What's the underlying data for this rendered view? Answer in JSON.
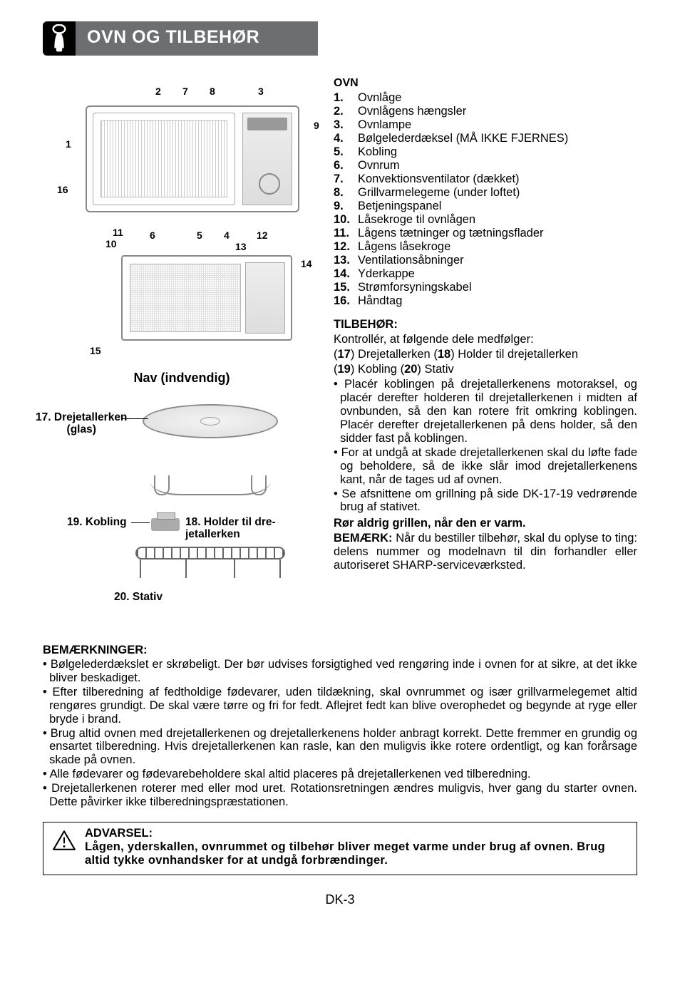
{
  "header": {
    "title": "OVN OG TILBEHØR"
  },
  "diagram1_numbers": {
    "n1": "1",
    "n2": "2",
    "n3": "3",
    "n4": "4",
    "n5": "5",
    "n6": "6",
    "n7": "7",
    "n8": "8",
    "n9": "9",
    "n10": "10",
    "n11": "11",
    "n12": "12",
    "n16": "16"
  },
  "diagram2_numbers": {
    "n13": "13",
    "n14": "14",
    "n15": "15"
  },
  "nav_title": "Nav (indvendig)",
  "accessories": {
    "drejetallerken": {
      "num": "17.",
      "label": "Drejetallerken",
      "sub": "(glas)"
    },
    "kobling": {
      "num": "19.",
      "label": "Kobling"
    },
    "holder": {
      "num": "18.",
      "label": "Holder til dre-",
      "sub": "jetallerken"
    },
    "stativ": {
      "num": "20.",
      "label": "Stativ"
    }
  },
  "ovn": {
    "heading": "OVN",
    "items": [
      {
        "n": "1.",
        "t": "Ovnlåge"
      },
      {
        "n": "2.",
        "t": "Ovnlågens hængsler"
      },
      {
        "n": "3.",
        "t": "Ovnlampe"
      },
      {
        "n": "4.",
        "t": "Bølgelederdæksel (MÅ IKKE FJERNES)"
      },
      {
        "n": "5.",
        "t": "Kobling"
      },
      {
        "n": "6.",
        "t": "Ovnrum"
      },
      {
        "n": "7.",
        "t": "Konvektionsventilator (dækket)"
      },
      {
        "n": "8.",
        "t": "Grillvarmelegeme (under loftet)"
      },
      {
        "n": "9.",
        "t": "Betjeningspanel"
      },
      {
        "n": "10.",
        "t": "Låsekroge til ovnlågen"
      },
      {
        "n": "11.",
        "t": "Lågens tætninger og tætningsflader"
      },
      {
        "n": "12.",
        "t": "Lågens låsekroge"
      },
      {
        "n": "13.",
        "t": "Ventilationsåbninger"
      },
      {
        "n": "14.",
        "t": "Yderkappe"
      },
      {
        "n": "15.",
        "t": "Strømforsyningskabel"
      },
      {
        "n": "16.",
        "t": "Håndtag"
      }
    ]
  },
  "tilbehor": {
    "heading": "TILBEHØR:",
    "intro": "Kontrollér, at følgende dele medfølger:",
    "line1a": "(",
    "line1_17": "17",
    "line1b": ") Drejetallerken (",
    "line1_18": "18",
    "line1c": ") Holder til drejetallerken",
    "line2a": "(",
    "line2_19": "19",
    "line2b": ") Kobling (",
    "line2_20": "20",
    "line2c": ") Stativ",
    "bullets": [
      "Placér koblingen på drejetallerkenens motoraksel, og placér derefter holderen til drejetallerkenen i midten af ovnbunden, så den kan rotere frit omkring koblingen. Placér derefter drejetallerkenen på dens holder, så den sidder fast på koblingen.",
      "For at undgå at skade drejetallerkenen skal du løfte fade og beholdere, så de ikke slår imod drejetallerkenens kant, når de tages ud af ovnen.",
      "Se afsnittene om grillning på side DK-17-19 vedrørende brug af stativet."
    ],
    "ror": "Rør aldrig grillen, når den er varm.",
    "bemark_label": "BEMÆRK:",
    "bemark_text": " Når du bestiller tilbehør, skal du oplyse to ting: delens nummer og modelnavn til din forhandler eller autoriseret SHARP-serviceværksted."
  },
  "bottom": {
    "heading": "BEMÆRKNINGER:",
    "bullets": [
      "Bølgelederdækslet er skrøbeligt. Der bør udvises forsigtighed ved rengøring inde i ovnen for at sikre, at det ikke bliver beskadiget.",
      "Efter tilberedning af fedtholdige fødevarer, uden tildækning, skal ovnrummet og især grillvarmelegemet altid rengøres grundigt. De skal være tørre og fri for fedt. Aflejret fedt kan blive overophedet og begynde at ryge eller bryde i brand.",
      "Brug altid ovnen med drejetallerkenen og drejetallerkenens holder anbragt korrekt. Dette fremmer en grundig og ensartet tilberedning. Hvis drejetallerkenen kan rasle, kan den muligvis ikke rotere ordentligt, og kan forårsage skade på ovnen.",
      "Alle fødevarer og fødevarebeholdere skal altid placeres på drejetallerkenen ved tilberedning.",
      "Drejetallerkenen roterer med eller mod uret. Rotationsretningen ændres muligvis, hver gang du starter ovnen. Dette påvirker ikke tilberedningspræstationen."
    ]
  },
  "warning": {
    "heading": "ADVARSEL:",
    "text": "Lågen, yderskallen, ovnrummet og tilbehør bliver meget varme under brug af ovnen. Brug altid tykke ovnhandsker for at undgå forbrændinger."
  },
  "footer": "DK-3",
  "colors": {
    "header_bg": "#6d6e71",
    "icon_bg": "#000000"
  }
}
